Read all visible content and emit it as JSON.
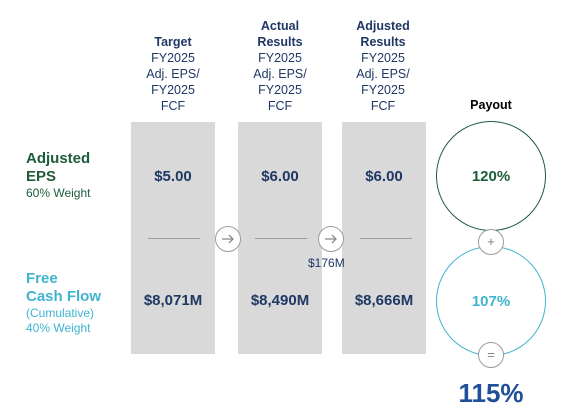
{
  "columns": [
    {
      "header_bold": "Target",
      "header_lines": [
        "FY2025",
        "Adj. EPS/",
        "FY2025",
        "FCF"
      ],
      "eps": "$5.00",
      "fcf": "$8,071M"
    },
    {
      "header_bold": "Actual Results",
      "header_lines": [
        "FY2025",
        "Adj. EPS/",
        "FY2025",
        "FCF"
      ],
      "eps": "$6.00",
      "fcf": "$8,490M"
    },
    {
      "header_bold": "Adjusted Results",
      "header_lines": [
        "FY2025",
        "Adj. EPS/",
        "FY2025",
        "FCF"
      ],
      "eps": "$6.00",
      "fcf": "$8,666M"
    }
  ],
  "adjustment_note": "$176M",
  "rows": {
    "eps": {
      "title_line1": "Adjusted",
      "title_line2": "EPS",
      "weight": "60% Weight"
    },
    "fcf": {
      "title_line1": "Free",
      "title_line2": "Cash Flow",
      "subtitle": "(Cumulative)",
      "weight": "40% Weight"
    }
  },
  "payout": {
    "label": "Payout",
    "eps_pct": "120%",
    "fcf_pct": "107%",
    "plus": "+",
    "equals": "=",
    "total": "115%"
  },
  "colors": {
    "eps_green": "#1e5c3a",
    "fcf_teal": "#3fb3cf",
    "navy": "#1f3864",
    "panel_gray": "#d9d9d9",
    "total_blue": "#1f4e9a"
  },
  "icons": {
    "arrow": "arrow-right-icon"
  }
}
